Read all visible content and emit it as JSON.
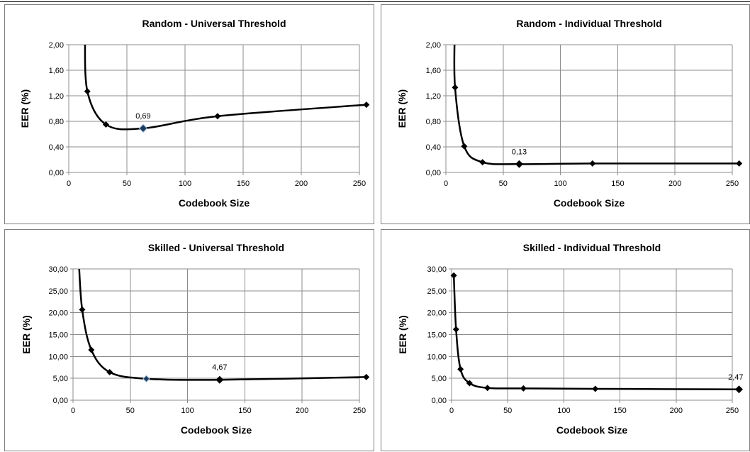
{
  "chart_data": [
    {
      "id": "random-universal",
      "type": "line",
      "title": "Random - Universal Threshold",
      "xlabel": "Codebook Size",
      "ylabel": "EER (%)",
      "xlim": [
        0,
        250
      ],
      "ylim": [
        0,
        2
      ],
      "xticks": [
        0,
        50,
        100,
        150,
        200,
        250
      ],
      "xtick_labels": [
        "0",
        "50",
        "100",
        "150",
        "200",
        "250"
      ],
      "yticks": [
        0,
        0.4,
        0.8,
        1.2,
        1.6,
        2.0
      ],
      "ytick_labels": [
        "0,00",
        "0,40",
        "0,80",
        "1,20",
        "1,60",
        "2,00"
      ],
      "grid": true,
      "curve_start": [
        14,
        2.2
      ],
      "series": [
        {
          "x": [
            16,
            32,
            64,
            128,
            256
          ],
          "y": [
            1.27,
            0.75,
            0.69,
            0.88,
            1.06
          ]
        }
      ],
      "annotations": [
        {
          "x": 64,
          "y": 0.69,
          "text": "0,69",
          "highlight": true
        }
      ]
    },
    {
      "id": "random-individual",
      "type": "line",
      "title": "Random - Individual  Threshold",
      "xlabel": "Codebook Size",
      "ylabel": "EER (%)",
      "xlim": [
        0,
        250
      ],
      "ylim": [
        0,
        2
      ],
      "xticks": [
        0,
        50,
        100,
        150,
        200,
        250
      ],
      "xtick_labels": [
        "0",
        "50",
        "100",
        "150",
        "200",
        "250"
      ],
      "yticks": [
        0,
        0.4,
        0.8,
        1.2,
        1.6,
        2.0
      ],
      "ytick_labels": [
        "0,00",
        "0,40",
        "0,80",
        "1,20",
        "1,60",
        "2,00"
      ],
      "grid": true,
      "curve_start": [
        7.7,
        2.2
      ],
      "series": [
        {
          "x": [
            8,
            16,
            32,
            64,
            128,
            256
          ],
          "y": [
            1.33,
            0.41,
            0.16,
            0.13,
            0.14,
            0.14
          ]
        }
      ],
      "annotations": [
        {
          "x": 64,
          "y": 0.13,
          "text": "0,13",
          "highlight": false
        }
      ]
    },
    {
      "id": "skilled-universal",
      "type": "line",
      "title": "Skilled - Universal Threshold",
      "xlabel": "Codebook Size",
      "ylabel": "EER (%)",
      "xlim": [
        0,
        250
      ],
      "ylim": [
        0,
        30
      ],
      "xticks": [
        0,
        50,
        100,
        150,
        200,
        250
      ],
      "xtick_labels": [
        "0",
        "50",
        "100",
        "150",
        "200",
        "250"
      ],
      "yticks": [
        0,
        5,
        10,
        15,
        20,
        25,
        30
      ],
      "ytick_labels": [
        "0,00",
        "5,00",
        "10,00",
        "15,00",
        "20,00",
        "25,00",
        "30,00"
      ],
      "grid": true,
      "curve_start": [
        5,
        32
      ],
      "series": [
        {
          "x": [
            8,
            16,
            32,
            64,
            128,
            256
          ],
          "y": [
            20.7,
            11.5,
            6.4,
            4.9,
            4.67,
            5.3
          ]
        }
      ],
      "annotations": [
        {
          "x": 128,
          "y": 4.67,
          "text": "4,67",
          "highlight": false
        }
      ],
      "highlight_points": [
        64
      ]
    },
    {
      "id": "skilled-individual",
      "type": "line",
      "title": "Skilled - Individual  Threshold",
      "xlabel": "Codebook Size",
      "ylabel": "EER (%)",
      "xlim": [
        0,
        250
      ],
      "ylim": [
        0,
        30
      ],
      "xticks": [
        0,
        50,
        100,
        150,
        200,
        250
      ],
      "xtick_labels": [
        "0",
        "50",
        "100",
        "150",
        "200",
        "250"
      ],
      "yticks": [
        0,
        5,
        10,
        15,
        20,
        25,
        30
      ],
      "ytick_labels": [
        "0,00",
        "5,00",
        "10,00",
        "15,00",
        "20,00",
        "25,00",
        "30,00"
      ],
      "grid": true,
      "series": [
        {
          "x": [
            2,
            4,
            8,
            16,
            32,
            64,
            128,
            256
          ],
          "y": [
            28.5,
            16.2,
            7.1,
            3.9,
            2.8,
            2.7,
            2.6,
            2.47
          ]
        }
      ],
      "annotations": [
        {
          "x": 256,
          "y": 2.47,
          "text": "2,47",
          "highlight": false
        }
      ]
    }
  ]
}
